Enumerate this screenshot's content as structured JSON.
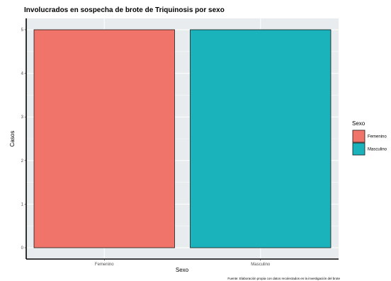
{
  "chart_data": {
    "type": "bar",
    "title": "Involucrados en sospecha de brote de Triquinosis por sexo",
    "xlabel": "Sexo",
    "ylabel": "Casos",
    "categories": [
      "Femenino",
      "Masculino"
    ],
    "values": [
      5,
      5
    ],
    "colors": [
      "#F07469",
      "#1AB3BB"
    ],
    "ylim": [
      0,
      5
    ],
    "yticks": [
      "0",
      "1",
      "2",
      "3",
      "4",
      "5"
    ],
    "grid": true,
    "legend": {
      "title": "Sexo",
      "placement": "right",
      "entries": [
        "Femenino",
        "Masculino"
      ]
    },
    "caption": "Fuente: Elaboración propia con datos recolectados en la investigación del brote"
  }
}
